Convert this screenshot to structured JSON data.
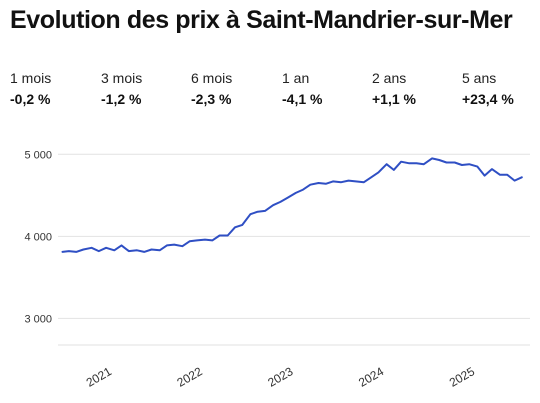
{
  "title": "Evolution des prix à Saint-Mandrier-sur-Mer",
  "stats": [
    {
      "label": "1 mois",
      "value": "-0,2 %"
    },
    {
      "label": "3 mois",
      "value": "-1,2 %"
    },
    {
      "label": "6 mois",
      "value": "-2,3 %"
    },
    {
      "label": "1 an",
      "value": "-4,1 %"
    },
    {
      "label": "2 ans",
      "value": "+1,1 %"
    },
    {
      "label": "5 ans",
      "value": "+23,4 %"
    }
  ],
  "chart_data": {
    "type": "line",
    "line_color": "#2f4fc4",
    "grid_color": "#e2e2e2",
    "grid": true,
    "ylim": [
      2700,
      5150
    ],
    "xlim": [
      2020.55,
      2025.75
    ],
    "yticks": [
      {
        "value": 3000,
        "label": "3 000"
      },
      {
        "value": 4000,
        "label": "4 000"
      },
      {
        "value": 5000,
        "label": "5 000"
      }
    ],
    "xticks": [
      {
        "value": 2021,
        "label": "2021"
      },
      {
        "value": 2022,
        "label": "2022"
      },
      {
        "value": 2023,
        "label": "2023"
      },
      {
        "value": 2024,
        "label": "2024"
      },
      {
        "value": 2025,
        "label": "2025"
      }
    ],
    "series": [
      {
        "x": [
          2020.6,
          2020.67,
          2020.75,
          2020.83,
          2020.92,
          2021.0,
          2021.08,
          2021.17,
          2021.25,
          2021.33,
          2021.42,
          2021.5,
          2021.58,
          2021.67,
          2021.75,
          2021.83,
          2021.92,
          2022.0,
          2022.08,
          2022.17,
          2022.25,
          2022.33,
          2022.42,
          2022.5,
          2022.58,
          2022.67,
          2022.75,
          2022.83,
          2022.92,
          2023.0,
          2023.08,
          2023.17,
          2023.25,
          2023.33,
          2023.42,
          2023.5,
          2023.58,
          2023.67,
          2023.75,
          2023.83,
          2023.92,
          2024.0,
          2024.08,
          2024.17,
          2024.25,
          2024.33,
          2024.42,
          2024.5,
          2024.58,
          2024.67,
          2024.75,
          2024.83,
          2024.92,
          2025.0,
          2025.08,
          2025.17,
          2025.25,
          2025.33,
          2025.42,
          2025.5,
          2025.58,
          2025.66
        ],
        "y": [
          3810,
          3820,
          3810,
          3840,
          3860,
          3820,
          3860,
          3830,
          3890,
          3820,
          3830,
          3810,
          3840,
          3830,
          3890,
          3900,
          3880,
          3940,
          3950,
          3960,
          3950,
          4010,
          4010,
          4110,
          4140,
          4270,
          4300,
          4310,
          4380,
          4420,
          4470,
          4530,
          4570,
          4630,
          4650,
          4640,
          4670,
          4660,
          4680,
          4670,
          4660,
          4720,
          4780,
          4880,
          4810,
          4910,
          4890,
          4890,
          4880,
          4950,
          4930,
          4900,
          4900,
          4870,
          4880,
          4850,
          4740,
          4820,
          4750,
          4750,
          4680,
          4720
        ]
      }
    ]
  }
}
